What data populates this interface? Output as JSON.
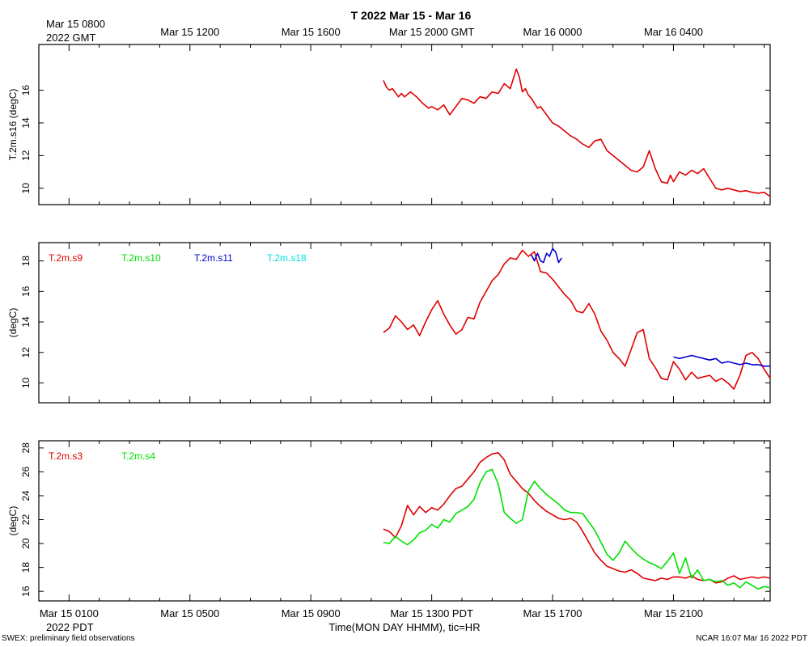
{
  "title": "T 2022 Mar 15 - Mar 16",
  "top_axis": {
    "labels": [
      "Mar 15 0800",
      "Mar 15 1200",
      "Mar 15 1600",
      "Mar 15 2000 GMT",
      "Mar 16 0000",
      "Mar 16 0400"
    ],
    "sublabel": "2022 GMT"
  },
  "bottom_axis": {
    "labels": [
      "Mar 15 0100",
      "Mar 15 0500",
      "Mar 15 0900",
      "Mar 15 1300 PDT",
      "Mar 15 1700",
      "Mar 15 2100"
    ],
    "sublabel": "2022 PDT",
    "title": "Time(MON DAY HHMM), tic=HR"
  },
  "footer": {
    "left": "SWEX: preliminary field observations",
    "right": "NCAR 16:07 Mar 16 2022 PDT"
  },
  "colors": {
    "red": "#e00000",
    "green": "#00e000",
    "blue": "#0000d0",
    "cyan": "#00e0e0"
  },
  "chart_data": [
    {
      "type": "line",
      "ylabel": "T.2m.s16 (degC)",
      "x_unit": "hours since Mar 15 0100 PDT",
      "xlim": [
        -1,
        23.2
      ],
      "ylim": [
        9,
        18.8
      ],
      "yticks": [
        10,
        12,
        14,
        16
      ],
      "legend": [],
      "series": [
        {
          "name": "T.2m.s16",
          "color": "#e00000",
          "x": [
            10.4,
            10.5,
            10.6,
            10.7,
            10.9,
            11.0,
            11.1,
            11.3,
            11.5,
            11.7,
            11.9,
            12.0,
            12.2,
            12.4,
            12.6,
            12.8,
            13.0,
            13.2,
            13.4,
            13.6,
            13.8,
            14.0,
            14.2,
            14.4,
            14.6,
            14.8,
            14.9,
            15.0,
            15.1,
            15.2,
            15.3,
            15.4,
            15.5,
            15.6,
            15.8,
            16.0,
            16.2,
            16.4,
            16.6,
            16.8,
            17.0,
            17.2,
            17.4,
            17.6,
            17.8,
            18.0,
            18.2,
            18.4,
            18.6,
            18.8,
            19.0,
            19.2,
            19.4,
            19.6,
            19.8,
            19.9,
            20.0,
            20.2,
            20.4,
            20.6,
            20.8,
            21.0,
            21.2,
            21.4,
            21.6,
            21.8,
            22.0,
            22.2,
            22.4,
            22.6,
            22.8,
            23.0,
            23.2
          ],
          "values": [
            16.6,
            16.2,
            16.0,
            16.1,
            15.6,
            15.8,
            15.6,
            15.9,
            15.6,
            15.2,
            14.9,
            15.0,
            14.8,
            15.1,
            14.5,
            15.0,
            15.5,
            15.4,
            15.2,
            15.6,
            15.5,
            15.9,
            15.8,
            16.4,
            16.1,
            17.3,
            16.8,
            15.9,
            16.1,
            15.7,
            15.5,
            15.2,
            14.9,
            15.0,
            14.5,
            14.0,
            13.8,
            13.5,
            13.2,
            13.0,
            12.7,
            12.5,
            12.9,
            13.0,
            12.3,
            12.0,
            11.7,
            11.4,
            11.1,
            11.0,
            11.3,
            12.3,
            11.2,
            10.4,
            10.3,
            10.8,
            10.4,
            11.0,
            10.8,
            11.1,
            10.9,
            11.2,
            10.6,
            10.0,
            9.9,
            10.0,
            9.9,
            9.8,
            9.85,
            9.75,
            9.7,
            9.75,
            9.5
          ]
        }
      ]
    },
    {
      "type": "line",
      "ylabel": "(degC)",
      "x_unit": "hours since Mar 15 0100 PDT",
      "xlim": [
        -1,
        23.2
      ],
      "ylim": [
        8.7,
        19.2
      ],
      "yticks": [
        10,
        12,
        14,
        16,
        18
      ],
      "legend": [
        "T.2m.s9",
        "T.2m.s10",
        "T.2m.s11",
        "T.2m.s18"
      ],
      "series": [
        {
          "name": "T.2m.s9",
          "color": "#e00000",
          "x": [
            10.4,
            10.6,
            10.8,
            11.0,
            11.2,
            11.4,
            11.6,
            11.8,
            12.0,
            12.2,
            12.4,
            12.6,
            12.8,
            13.0,
            13.2,
            13.4,
            13.6,
            13.8,
            14.0,
            14.2,
            14.4,
            14.6,
            14.8,
            15.0,
            15.2,
            15.4,
            15.6,
            15.8,
            16.0,
            16.2,
            16.4,
            16.6,
            16.8,
            17.0,
            17.2,
            17.4,
            17.6,
            17.8,
            18.0,
            18.2,
            18.4,
            18.6,
            18.8,
            19.0,
            19.2,
            19.4,
            19.6,
            19.8,
            20.0,
            20.2,
            20.4,
            20.6,
            20.8,
            21.0,
            21.2,
            21.4,
            21.6,
            21.8,
            22.0,
            22.2,
            22.4,
            22.6,
            22.8,
            23.0,
            23.2
          ],
          "values": [
            13.3,
            13.6,
            14.4,
            14.0,
            13.5,
            13.8,
            13.1,
            14.0,
            14.8,
            15.4,
            14.5,
            13.8,
            13.2,
            13.5,
            14.3,
            14.2,
            15.3,
            16.0,
            16.7,
            17.1,
            17.8,
            18.2,
            18.1,
            18.7,
            18.3,
            18.6,
            17.3,
            17.2,
            16.8,
            16.3,
            15.8,
            15.4,
            14.7,
            14.6,
            15.2,
            14.5,
            13.4,
            12.8,
            12.0,
            11.6,
            11.1,
            12.2,
            13.3,
            13.5,
            11.6,
            11.0,
            10.3,
            10.2,
            11.4,
            10.9,
            10.2,
            10.7,
            10.3,
            10.4,
            10.5,
            10.1,
            10.3,
            10.0,
            9.6,
            10.5,
            11.8,
            12.0,
            11.6,
            10.9,
            10.3
          ]
        },
        {
          "name": "T.2m.s11",
          "color": "#0000d0",
          "x": [
            15.3,
            15.4,
            15.5,
            15.6,
            15.7,
            15.8,
            15.9,
            16.0,
            16.1,
            16.2,
            16.3
          ],
          "values": [
            18.4,
            18.0,
            18.5,
            18.0,
            17.9,
            18.5,
            18.3,
            18.8,
            18.6,
            17.9,
            18.2
          ]
        },
        {
          "name": "T.2m.s11",
          "color": "#0000d0",
          "x": [
            20.0,
            20.2,
            20.4,
            20.6,
            20.8,
            21.0,
            21.2,
            21.4,
            21.6,
            21.8,
            22.0,
            22.2,
            22.4,
            22.6,
            22.8,
            23.0,
            23.2
          ],
          "values": [
            11.7,
            11.6,
            11.7,
            11.8,
            11.7,
            11.6,
            11.5,
            11.6,
            11.3,
            11.4,
            11.3,
            11.2,
            11.3,
            11.2,
            11.2,
            11.1,
            11.1
          ]
        }
      ]
    },
    {
      "type": "line",
      "ylabel": "(degC)",
      "x_unit": "hours since Mar 15 0100 PDT",
      "xlim": [
        -1,
        23.2
      ],
      "ylim": [
        15.2,
        28.6
      ],
      "yticks": [
        16,
        18,
        20,
        22,
        24,
        26,
        28
      ],
      "legend": [
        "T.2m.s3",
        "T.2m.s4"
      ],
      "series": [
        {
          "name": "T.2m.s3",
          "color": "#e00000",
          "x": [
            10.4,
            10.6,
            10.8,
            11.0,
            11.2,
            11.4,
            11.6,
            11.8,
            12.0,
            12.2,
            12.4,
            12.6,
            12.8,
            13.0,
            13.2,
            13.4,
            13.6,
            13.8,
            14.0,
            14.2,
            14.4,
            14.6,
            14.8,
            15.0,
            15.2,
            15.4,
            15.6,
            15.8,
            16.0,
            16.2,
            16.4,
            16.6,
            16.8,
            17.0,
            17.2,
            17.4,
            17.6,
            17.8,
            18.0,
            18.2,
            18.4,
            18.6,
            18.8,
            19.0,
            19.2,
            19.4,
            19.6,
            19.8,
            20.0,
            20.2,
            20.4,
            20.6,
            20.8,
            21.0,
            21.2,
            21.4,
            21.6,
            21.8,
            22.0,
            22.2,
            22.4,
            22.6,
            22.8,
            23.0,
            23.2
          ],
          "values": [
            21.2,
            21.0,
            20.5,
            21.5,
            23.2,
            22.4,
            23.1,
            22.6,
            23.0,
            22.8,
            23.3,
            24.0,
            24.6,
            24.8,
            25.4,
            26.0,
            26.8,
            27.2,
            27.5,
            27.6,
            27.0,
            25.8,
            25.2,
            24.6,
            24.2,
            23.6,
            23.1,
            22.7,
            22.4,
            22.1,
            22.0,
            22.1,
            21.8,
            21.0,
            20.1,
            19.2,
            18.6,
            18.1,
            17.9,
            17.7,
            17.6,
            17.8,
            17.5,
            17.1,
            17.0,
            16.9,
            17.1,
            17.0,
            17.2,
            17.2,
            17.1,
            17.3,
            17.0,
            16.9,
            17.0,
            16.7,
            16.8,
            17.1,
            17.3,
            17.0,
            17.1,
            17.2,
            17.1,
            17.2,
            17.1
          ]
        },
        {
          "name": "T.2m.s4",
          "color": "#00e000",
          "x": [
            10.4,
            10.6,
            10.8,
            11.0,
            11.2,
            11.4,
            11.6,
            11.8,
            12.0,
            12.2,
            12.4,
            12.6,
            12.8,
            13.0,
            13.2,
            13.4,
            13.6,
            13.8,
            14.0,
            14.2,
            14.4,
            14.6,
            14.8,
            15.0,
            15.2,
            15.4,
            15.6,
            15.8,
            16.0,
            16.2,
            16.4,
            16.6,
            16.8,
            17.0,
            17.2,
            17.4,
            17.6,
            17.8,
            18.0,
            18.2,
            18.4,
            18.6,
            18.8,
            19.0,
            19.2,
            19.4,
            19.6,
            19.8,
            20.0,
            20.2,
            20.4,
            20.6,
            20.8,
            21.0,
            21.2,
            21.4,
            21.6,
            21.8,
            22.0,
            22.2,
            22.4,
            22.6,
            22.8,
            23.0,
            23.2
          ],
          "values": [
            20.1,
            20.0,
            20.6,
            20.2,
            19.9,
            20.3,
            20.9,
            21.1,
            21.6,
            21.3,
            22.0,
            21.8,
            22.5,
            22.8,
            23.1,
            23.7,
            25.1,
            26.0,
            26.2,
            25.0,
            22.6,
            22.1,
            21.7,
            22.0,
            24.4,
            25.2,
            24.6,
            24.1,
            23.7,
            23.3,
            22.8,
            22.6,
            22.6,
            22.5,
            21.8,
            21.1,
            20.1,
            19.1,
            18.6,
            19.2,
            20.2,
            19.6,
            19.1,
            18.7,
            18.4,
            18.2,
            17.9,
            18.5,
            19.2,
            17.5,
            18.8,
            17.1,
            17.8,
            16.9,
            17.0,
            16.8,
            16.9,
            16.5,
            16.7,
            16.3,
            16.8,
            16.5,
            16.2,
            16.4,
            16.3
          ]
        }
      ]
    }
  ]
}
